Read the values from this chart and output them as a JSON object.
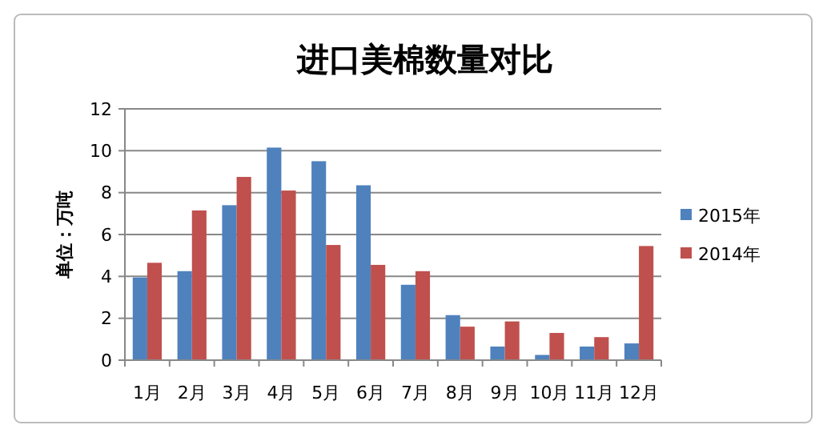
{
  "chart_data": {
    "type": "bar",
    "title": "进口美棉数量对比",
    "ylabel": "单位：万吨",
    "categories": [
      "1月",
      "2月",
      "3月",
      "4月",
      "5月",
      "6月",
      "7月",
      "8月",
      "9月",
      "10月",
      "11月",
      "12月"
    ],
    "series": [
      {
        "name": "2015年",
        "color": "#4f81bd",
        "values": [
          3.95,
          4.25,
          7.4,
          10.15,
          9.5,
          8.35,
          3.6,
          2.15,
          0.65,
          0.25,
          0.65,
          0.8
        ]
      },
      {
        "name": "2014年",
        "color": "#c0504d",
        "values": [
          4.65,
          7.15,
          8.75,
          8.1,
          5.5,
          4.55,
          4.25,
          1.6,
          1.85,
          1.3,
          1.1,
          5.45
        ]
      }
    ],
    "ylim": [
      0,
      12
    ],
    "yticks": [
      0,
      2,
      4,
      6,
      8,
      10,
      12
    ],
    "grid": "y",
    "legend": "right"
  }
}
